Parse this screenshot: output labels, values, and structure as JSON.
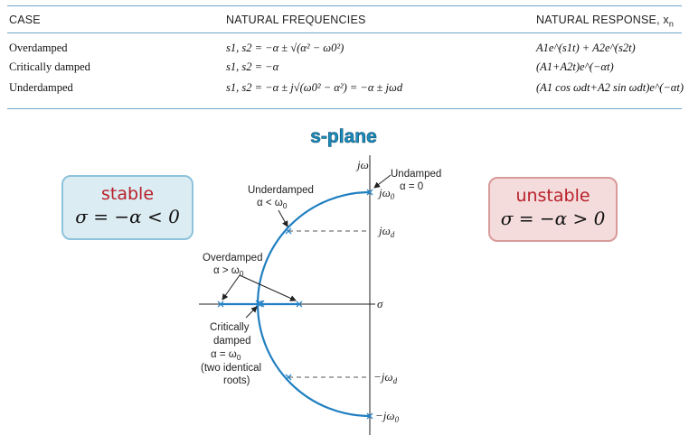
{
  "table": {
    "headers": {
      "case": "CASE",
      "frequencies": "NATURAL FREQUENCIES",
      "response": "NATURAL RESPONSE, x",
      "response_sub": "n"
    },
    "rows": [
      {
        "case": "Overdamped",
        "freq": "s1, s2 = −α ± √(α² − ω0²)",
        "resp": "A1e^(s1t) + A2e^(s2t)"
      },
      {
        "case": "Critically damped",
        "freq": "s1, s2 = −α",
        "resp": "(A1+A2t)e^(−αt)"
      },
      {
        "case": "Underdamped",
        "freq": "s1, s2 = −α ± j√(ω0² − α²) = −α ± jωd",
        "resp": "(A1 cos ωdt+A2 sin ωdt)e^(−αt)"
      }
    ]
  },
  "diagram": {
    "title": "s-plane",
    "stable": {
      "word": "stable",
      "equation": "σ = −α < 0"
    },
    "unstable": {
      "word": "unstable",
      "equation": "σ = −α > 0"
    },
    "axis": {
      "imag": "jω",
      "real": "σ"
    },
    "ticks": {
      "jw0": "jω",
      "jw0_sub": "0",
      "jwd": "jω",
      "jwd_sub": "d",
      "mjwd": "−jω",
      "mjwd_sub": "d",
      "mjw0": "−jω",
      "mjw0_sub": "0"
    },
    "annotations": {
      "undamped": {
        "line1": "Undamped",
        "line2": "α = 0"
      },
      "underdamped": {
        "line1": "Underdamped",
        "line2": "α < ω",
        "sub": "0"
      },
      "overdamped": {
        "line1": "Overdamped",
        "line2": "α > ω",
        "sub": "0"
      },
      "critical": {
        "line1": "Critically",
        "line2": "damped",
        "line3": "α = ω",
        "line3_sub": "0",
        "line4": "(two identical",
        "line5": "roots)"
      }
    },
    "colors": {
      "locus": "#1f7fc1",
      "marker": "#2a86c8"
    }
  }
}
